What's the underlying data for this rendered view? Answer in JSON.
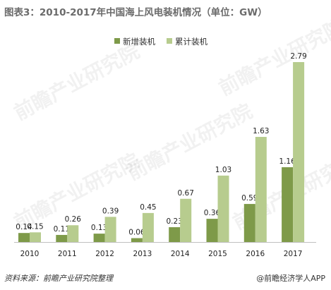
{
  "title": "图表3：2010-2017年中国海上风电装机情况（单位：GW）",
  "footer": {
    "source": "资料来源：前瞻产业研究院整理",
    "brand": "@前瞻经济学人APP"
  },
  "watermark": "前瞻产业研究院",
  "colors": {
    "new": "#7e9a49",
    "cumulative": "#b7cc8e",
    "label": "#222222",
    "axis": "#bfbfbf"
  },
  "chart_data": {
    "type": "bar",
    "title": "图表3：2010-2017年中国海上风电装机情况（单位：GW）",
    "categories": [
      "2010",
      "2011",
      "2012",
      "2013",
      "2014",
      "2015",
      "2016",
      "2017"
    ],
    "series": [
      {
        "name": "新增装机",
        "values": [
          0.14,
          0.11,
          0.13,
          0.06,
          0.23,
          0.36,
          0.59,
          1.16
        ],
        "labels": [
          "0.14",
          "0.11",
          "0.13",
          "0.06",
          "0.23",
          "0.36",
          "0.59",
          "1.16"
        ]
      },
      {
        "name": "累计装机",
        "values": [
          0.15,
          0.26,
          0.39,
          0.45,
          0.67,
          1.03,
          1.63,
          2.79
        ],
        "labels": [
          "0.15",
          "0.26",
          "0.39",
          "0.45",
          "0.67",
          "1.03",
          "1.63",
          "2.79"
        ]
      }
    ],
    "ylim": [
      0,
      2.79
    ],
    "legend": "top",
    "grid": false
  }
}
